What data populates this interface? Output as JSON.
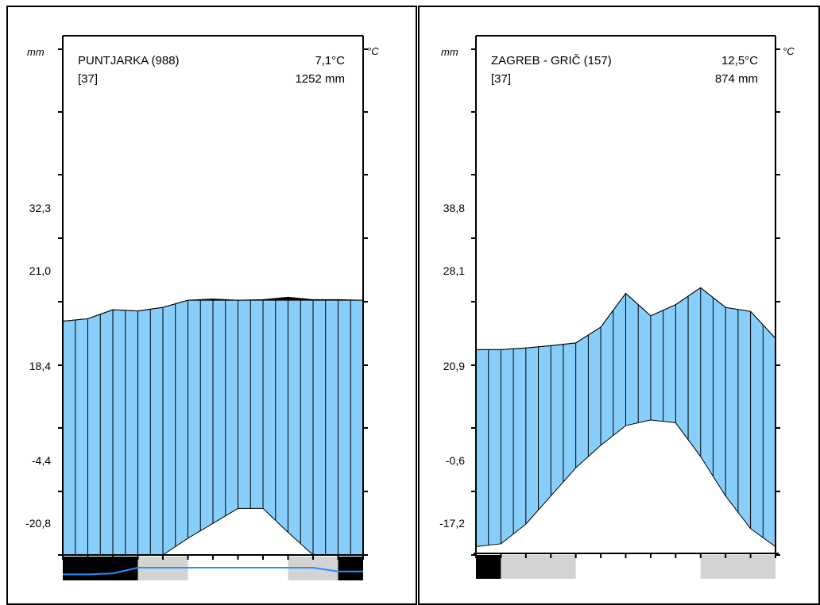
{
  "colors": {
    "humid_fill": "#87cefa",
    "arid_fill": "#000000",
    "frost_certain": "#000000",
    "frost_possible": "#d3d3d3",
    "min_temp_line": "#1e90ff"
  },
  "chart_data": [
    {
      "type": "climate_diagram",
      "station": "PUNTJARKA (988)",
      "years": "[37]",
      "mean_temp": "7,1°C",
      "annual_precip": "1252 mm",
      "left_unit": "mm",
      "right_unit": "°C",
      "left_labels": [
        "32,3",
        "21,0",
        "18,4",
        "-4,4",
        "-20,8"
      ],
      "precip_outline": [
        18.4,
        18.8,
        20.3,
        20.1,
        20.7,
        21.9,
        22.1,
        21.9,
        22.0,
        22.4,
        22.0,
        22.0,
        21.9
      ],
      "temp_outline": [
        -32.0,
        -31.6,
        -30.0,
        -26.0,
        -22.0,
        -18.0,
        -15.5,
        -13.0,
        -13.0,
        -17.0,
        -22.0,
        -29.0,
        -32.2
      ],
      "min_temp_curve": [
        -35.0,
        -35.0,
        -34.6,
        -32.2,
        -32.2,
        -32.2,
        -32.2,
        -32.2,
        -32.2,
        -32.2,
        -32.2,
        -33.8,
        -33.8
      ],
      "frost_months": [
        "certain",
        "certain",
        "certain",
        "possible",
        "possible",
        "none",
        "none",
        "none",
        "none",
        "possible",
        "possible",
        "certain"
      ]
    },
    {
      "type": "climate_diagram",
      "station": "ZAGREB - GRIČ (157)",
      "years": "[37]",
      "mean_temp": "12,5°C",
      "annual_precip": "874 mm",
      "left_unit": "mm",
      "right_unit": "°C",
      "left_labels": [
        "38,8",
        "28,1",
        "20,9",
        "-0,6",
        "-17,2"
      ],
      "precip_outline": [
        19.0,
        19.0,
        19.3,
        19.7,
        20.2,
        23.0,
        29.0,
        25.0,
        27.0,
        30.0,
        26.5,
        25.8,
        21.0
      ],
      "temp_outline": [
        -16.0,
        -15.5,
        -12.0,
        -7.0,
        -2.0,
        2.0,
        5.5,
        6.5,
        6.0,
        0.0,
        -7.0,
        -12.8,
        -16.0
      ],
      "frost_months": [
        "certain",
        "possible",
        "possible",
        "possible",
        "none",
        "none",
        "none",
        "none",
        "none",
        "possible",
        "possible",
        "possible"
      ]
    }
  ]
}
